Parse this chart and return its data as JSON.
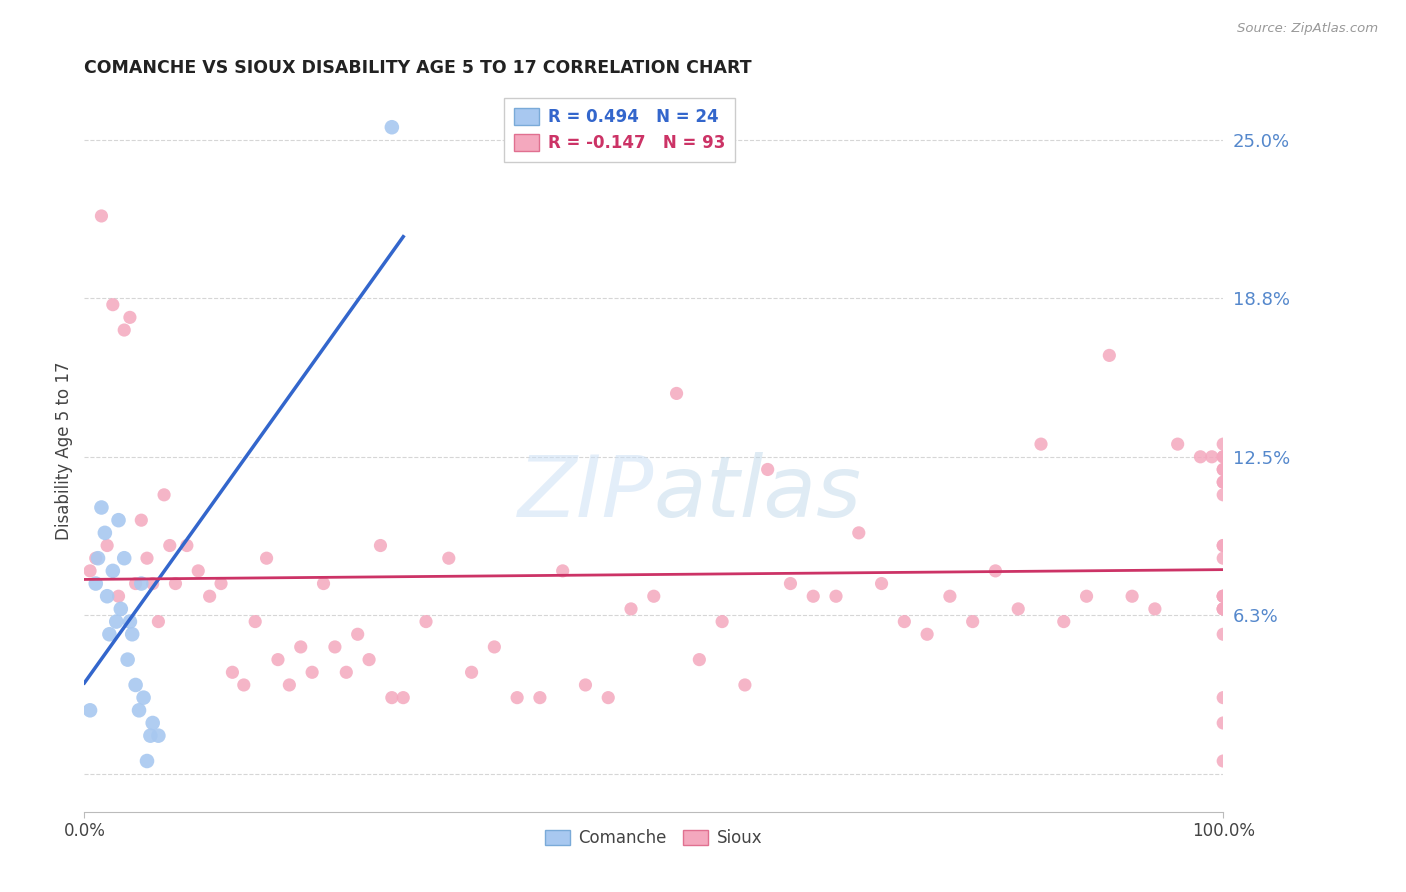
{
  "title": "COMANCHE VS SIOUX DISABILITY AGE 5 TO 17 CORRELATION CHART",
  "source": "Source: ZipAtlas.com",
  "ylabel": "Disability Age 5 to 17",
  "xlim": [
    0.0,
    100.0
  ],
  "ylim": [
    -1.5,
    27.0
  ],
  "yticks": [
    0.0,
    6.25,
    12.5,
    18.75,
    25.0
  ],
  "ytick_labels": [
    "",
    "6.3%",
    "12.5%",
    "18.8%",
    "25.0%"
  ],
  "grid_color": "#cccccc",
  "background_color": "#ffffff",
  "comanche_color": "#a8c8f0",
  "comanche_edge_color": "#7aaad8",
  "sioux_color": "#f4a8be",
  "sioux_edge_color": "#e07090",
  "comanche_line_color": "#3366cc",
  "sioux_line_color": "#cc3366",
  "legend_R_comanche": "0.494",
  "legend_N_comanche": "24",
  "legend_R_sioux": "-0.147",
  "legend_N_sioux": "93",
  "comanche_x": [
    0.5,
    1.0,
    1.2,
    1.5,
    1.8,
    2.0,
    2.2,
    2.5,
    2.8,
    3.0,
    3.2,
    3.5,
    3.8,
    4.0,
    4.2,
    4.5,
    4.8,
    5.0,
    5.2,
    5.5,
    5.8,
    6.0,
    6.5,
    27.0
  ],
  "comanche_y": [
    2.5,
    7.5,
    8.5,
    10.5,
    9.5,
    7.0,
    5.5,
    8.0,
    6.0,
    10.0,
    6.5,
    8.5,
    4.5,
    6.0,
    5.5,
    3.5,
    2.5,
    7.5,
    3.0,
    0.5,
    1.5,
    2.0,
    1.5,
    25.5
  ],
  "sioux_x": [
    0.5,
    1.0,
    1.5,
    2.0,
    2.5,
    3.0,
    3.5,
    4.0,
    4.5,
    5.0,
    5.5,
    6.0,
    6.5,
    7.0,
    7.5,
    8.0,
    9.0,
    10.0,
    11.0,
    12.0,
    13.0,
    14.0,
    15.0,
    16.0,
    17.0,
    18.0,
    19.0,
    20.0,
    21.0,
    22.0,
    23.0,
    24.0,
    25.0,
    26.0,
    27.0,
    28.0,
    30.0,
    32.0,
    34.0,
    36.0,
    38.0,
    40.0,
    42.0,
    44.0,
    46.0,
    48.0,
    50.0,
    52.0,
    54.0,
    56.0,
    58.0,
    60.0,
    62.0,
    64.0,
    66.0,
    68.0,
    70.0,
    72.0,
    74.0,
    76.0,
    78.0,
    80.0,
    82.0,
    84.0,
    86.0,
    88.0,
    90.0,
    92.0,
    94.0,
    96.0,
    98.0,
    99.0,
    100.0,
    100.0,
    100.0,
    100.0,
    100.0,
    100.0,
    100.0,
    100.0,
    100.0,
    100.0,
    100.0,
    100.0,
    100.0,
    100.0,
    100.0,
    100.0,
    100.0,
    100.0,
    100.0,
    100.0,
    100.0
  ],
  "sioux_y": [
    8.0,
    8.5,
    22.0,
    9.0,
    18.5,
    7.0,
    17.5,
    18.0,
    7.5,
    10.0,
    8.5,
    7.5,
    6.0,
    11.0,
    9.0,
    7.5,
    9.0,
    8.0,
    7.0,
    7.5,
    4.0,
    3.5,
    6.0,
    8.5,
    4.5,
    3.5,
    5.0,
    4.0,
    7.5,
    5.0,
    4.0,
    5.5,
    4.5,
    9.0,
    3.0,
    3.0,
    6.0,
    8.5,
    4.0,
    5.0,
    3.0,
    3.0,
    8.0,
    3.5,
    3.0,
    6.5,
    7.0,
    15.0,
    4.5,
    6.0,
    3.5,
    12.0,
    7.5,
    7.0,
    7.0,
    9.5,
    7.5,
    6.0,
    5.5,
    7.0,
    6.0,
    8.0,
    6.5,
    13.0,
    6.0,
    7.0,
    16.5,
    7.0,
    6.5,
    13.0,
    12.5,
    12.5,
    2.0,
    7.0,
    7.0,
    9.0,
    5.5,
    13.0,
    12.5,
    11.5,
    6.5,
    12.0,
    12.0,
    11.0,
    0.5,
    9.0,
    7.0,
    8.5,
    11.5,
    12.5,
    3.0,
    6.5,
    6.5
  ]
}
